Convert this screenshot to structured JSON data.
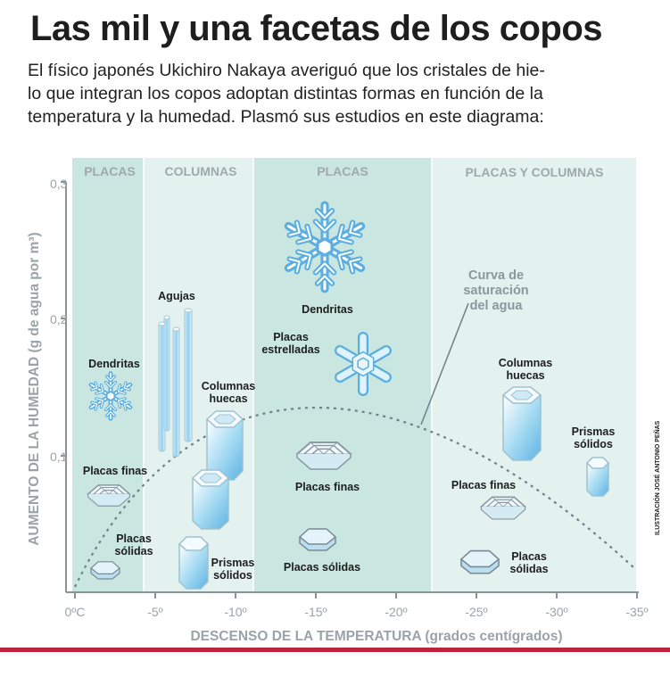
{
  "title": "Las mil y una facetas de los copos",
  "intro": [
    "El físico japonés Ukichiro Nakaya averiguó que los cristales de hie-",
    "lo que integran los copos adoptan distintas formas en función de la",
    "temperatura y la humedad. Plasmó sus estudios en este diagrama:"
  ],
  "zones": [
    "PLACAS",
    "COLUMNAS",
    "PLACAS",
    "PLACAS Y COLUMNAS"
  ],
  "y_axis": {
    "label": "AUMENTO DE LA HUMEDAD (g de agua por m³)",
    "ticks": [
      "0,3",
      "0,2",
      "0,1"
    ]
  },
  "x_axis": {
    "label": "DESCENSO DE LA TEMPERATURA (grados centígrados)",
    "ticks": [
      "0ºC",
      "-5º",
      "-10º",
      "-15º",
      "-20º",
      "-25º",
      "-30º",
      "-35º"
    ]
  },
  "curve_label": [
    "Curva de",
    "saturación",
    "del agua"
  ],
  "crystals": {
    "dendritas_1": [
      "Dendritas"
    ],
    "placas_finas_1": [
      "Placas finas"
    ],
    "placas_solidas_1": [
      "Placas",
      "sólidas"
    ],
    "agujas": [
      "Agujas"
    ],
    "columnas_huecas_1": [
      "Columnas",
      "huecas"
    ],
    "prismas_solidos_1": [
      "Prismas",
      "sólidos"
    ],
    "dendritas_2": [
      "Dendritas"
    ],
    "placas_estrelladas": [
      "Placas",
      "estrelladas"
    ],
    "placas_finas_2": [
      "Placas finas"
    ],
    "placas_solidas_2": [
      "Placas sólidas"
    ],
    "columnas_huecas_2": [
      "Columnas",
      "huecas"
    ],
    "prismas_solidos_2": [
      "Prismas",
      "sólidos"
    ],
    "placas_finas_3": [
      "Placas finas"
    ],
    "placas_solidas_3": [
      "Placas",
      "sólidas"
    ]
  },
  "credit": "ILUSTRACIÓN JOSÉ ANTONIO PEÑAS",
  "colors": {
    "zone_dark": "#c9e6e0",
    "zone_light": "#e3f2ef",
    "axis": "#8a9396",
    "accent": "#c0223b",
    "ice": "#7ec3ea"
  }
}
